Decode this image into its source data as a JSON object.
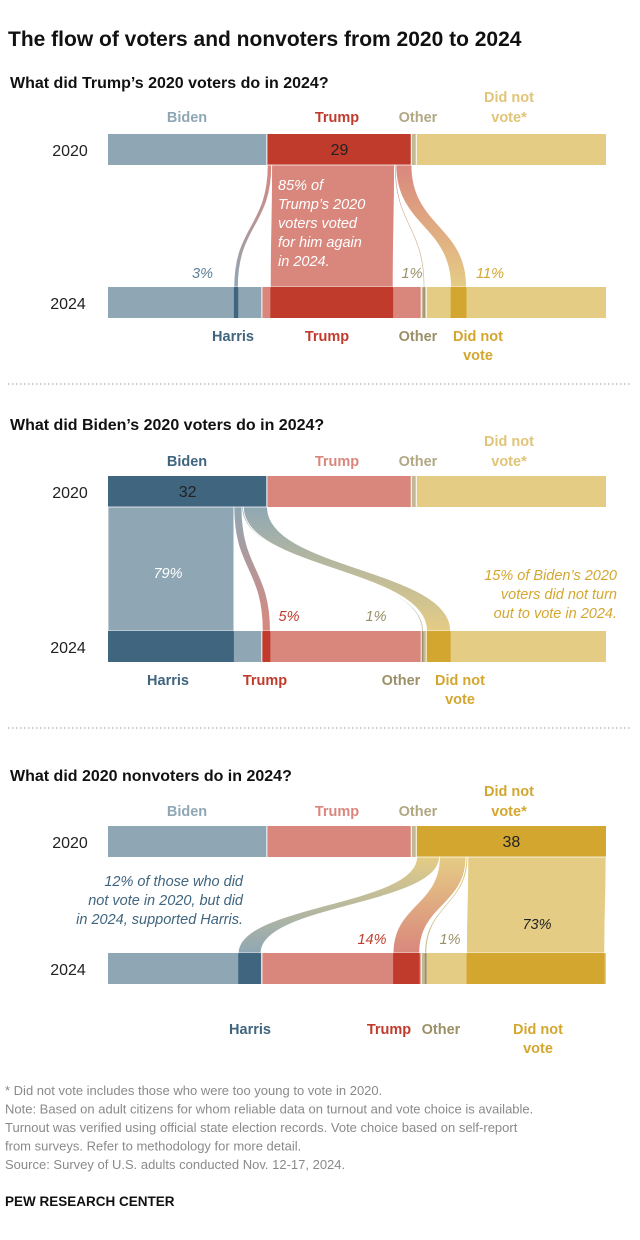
{
  "chart_data": {
    "type": "sankey",
    "title": "The flow of voters and nonvoters from 2020 to 2024",
    "years": [
      "2020",
      "2024"
    ],
    "categories_2020": [
      "Biden",
      "Trump",
      "Other",
      "Did not vote*"
    ],
    "categories_2024": [
      "Harris",
      "Trump",
      "Other",
      "Did not vote"
    ],
    "shares_2020": [
      32,
      29,
      1,
      38
    ],
    "shares_2024": [
      31,
      32,
      1,
      36
    ],
    "colors": {
      "biden_light": "#8fa7b4",
      "biden_dark": "#40657f",
      "trump_light": "#d9877d",
      "trump_dark": "#c13b2c",
      "other_light": "#c2b994",
      "other_dark": "#9b9068",
      "dnv_light": "#e5cc85",
      "dnv_dark": "#d3a72f"
    },
    "panels": [
      {
        "title": "What did Trump’s 2020 voters do in 2024?",
        "source": "Trump",
        "source_value": "29",
        "flows": [
          {
            "to": "Harris",
            "pct": 3,
            "label": "3%"
          },
          {
            "to": "Trump",
            "pct": 85,
            "label": ""
          },
          {
            "to": "Other",
            "pct": 1,
            "label": "1%"
          },
          {
            "to": "Did not vote",
            "pct": 11,
            "label": "11%"
          }
        ],
        "annotation": [
          "85% of",
          "Trump’s 2020",
          "voters voted",
          "for him again",
          "in 2024."
        ]
      },
      {
        "title": "What did Biden’s 2020 voters do in 2024?",
        "source": "Biden",
        "source_value": "32",
        "flows": [
          {
            "to": "Harris",
            "pct": 79,
            "label": "79%"
          },
          {
            "to": "Trump",
            "pct": 5,
            "label": "5%"
          },
          {
            "to": "Other",
            "pct": 1,
            "label": "1%"
          },
          {
            "to": "Did not vote",
            "pct": 15,
            "label": ""
          }
        ],
        "annotation": [
          "15% of Biden’s 2020",
          "voters did not turn",
          "out to vote in 2024."
        ]
      },
      {
        "title": "What did 2020 nonvoters do in 2024?",
        "source": "Did not vote",
        "source_value": "38",
        "flows": [
          {
            "to": "Harris",
            "pct": 12,
            "label": ""
          },
          {
            "to": "Trump",
            "pct": 14,
            "label": "14%"
          },
          {
            "to": "Other",
            "pct": 1,
            "label": "1%"
          },
          {
            "to": "Did not vote",
            "pct": 73,
            "label": "73%"
          }
        ],
        "annotation": [
          "12% of those who did",
          "not vote in 2020, but did",
          "in 2024, supported Harris."
        ]
      }
    ],
    "footnotes": [
      "* Did not vote includes those who were too young to vote in 2020.",
      "Note: Based on adult citizens for whom reliable data on turnout and vote choice is available.",
      "Turnout was verified using official state election records. Vote choice based on self-report",
      "from surveys. Refer to methodology for more detail.",
      "Source: Survey of U.S. adults conducted Nov. 12-17, 2024."
    ],
    "brand": "PEW RESEARCH CENTER"
  }
}
